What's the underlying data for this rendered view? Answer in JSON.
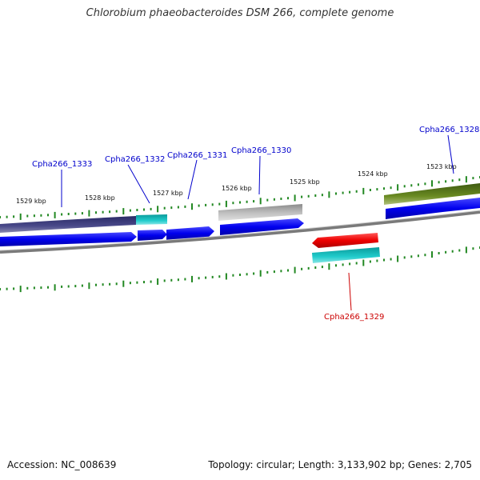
{
  "title": "Chlorobium phaeobacteroides DSM 266, complete genome",
  "footer": {
    "accession": "Accession: NC_008639",
    "topology": "Topology: circular; Length: 3,133,902 bp; Genes: 2,705"
  },
  "kbp_labels": [
    "1529 kbp",
    "1528 kbp",
    "1527 kbp",
    "1526 kbp",
    "1525 kbp",
    "1524 kbp",
    "1523 kbp"
  ],
  "genes": [
    {
      "label": "Cpha266_1333",
      "color": "#0000cc"
    },
    {
      "label": "Cpha266_1332",
      "color": "#0000cc"
    },
    {
      "label": "Cpha266_1331",
      "color": "#0000cc"
    },
    {
      "label": "Cpha266_1330",
      "color": "#0000cc"
    },
    {
      "label": "Cpha266_1328",
      "color": "#0000cc"
    },
    {
      "label": "Cpha266_1329",
      "color": "#cc0000"
    }
  ],
  "colors": {
    "tick": "#228822",
    "backbone": "#7a7a7a",
    "cds_forward": "#0000ee",
    "cds_reverse": "#ee0000",
    "cog_purple": "#3a3a7a",
    "cog_cyan": "#11bbbb",
    "cog_gray": "#b0b0b0",
    "cog_olive": "#5a7a1a"
  }
}
